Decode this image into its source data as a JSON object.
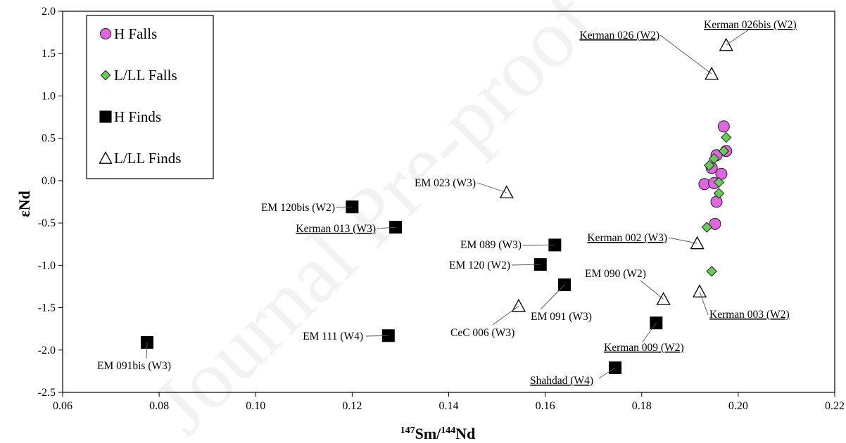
{
  "chart_data": {
    "type": "scatter",
    "watermark": "Journal Pre-proof",
    "xlabel": {
      "sup1": "147",
      "main1": "Sm/",
      "sup2": "144",
      "main2": "Nd"
    },
    "ylabel": "εNd",
    "xlim": [
      0.06,
      0.22
    ],
    "ylim": [
      -2.5,
      2.0
    ],
    "xticks": [
      0.06,
      0.08,
      0.1,
      0.12,
      0.14,
      0.16,
      0.18,
      0.2,
      0.22
    ],
    "xtick_labels": [
      "0.06",
      "0.08",
      "0.10",
      "0.12",
      "0.14",
      "0.16",
      "0.18",
      "0.20",
      "0.22"
    ],
    "yticks": [
      2.0,
      1.5,
      1.0,
      0.5,
      0.0,
      -0.5,
      -1.0,
      -1.5,
      -2.0,
      -2.5
    ],
    "ytick_labels": [
      "2.0",
      "1.5",
      "1.0",
      "0.5",
      "0.0",
      "-0.5",
      "-1.0",
      "-1.5",
      "-2.0",
      "-2.5"
    ],
    "grid": false,
    "legend_position": "top-left",
    "series": [
      {
        "name": "H Falls",
        "marker": "circle",
        "color": "#e066e0",
        "points": [
          {
            "x": 0.197,
            "y": 0.64
          },
          {
            "x": 0.1975,
            "y": 0.35
          },
          {
            "x": 0.1955,
            "y": 0.3
          },
          {
            "x": 0.1945,
            "y": 0.15
          },
          {
            "x": 0.1965,
            "y": 0.08
          },
          {
            "x": 0.193,
            "y": -0.04
          },
          {
            "x": 0.195,
            "y": -0.03
          },
          {
            "x": 0.1955,
            "y": -0.25
          },
          {
            "x": 0.1952,
            "y": -0.51
          }
        ]
      },
      {
        "name": "L/LL Falls",
        "marker": "diamond",
        "color": "#66cc55",
        "points": [
          {
            "x": 0.1975,
            "y": 0.51
          },
          {
            "x": 0.197,
            "y": 0.35
          },
          {
            "x": 0.195,
            "y": 0.26
          },
          {
            "x": 0.194,
            "y": 0.18
          },
          {
            "x": 0.196,
            "y": -0.02
          },
          {
            "x": 0.196,
            "y": -0.15
          },
          {
            "x": 0.1935,
            "y": -0.55
          },
          {
            "x": 0.1945,
            "y": -1.07
          }
        ]
      },
      {
        "name": "H Finds",
        "marker": "square",
        "color": "#000000",
        "points": [
          {
            "x": 0.12,
            "y": -0.31,
            "label": "EM 120bis (W2)",
            "underline": false
          },
          {
            "x": 0.129,
            "y": -0.55,
            "label": "Kerman 013 (W3)",
            "underline": true
          },
          {
            "x": 0.162,
            "y": -0.76,
            "label": "EM 089 (W3)",
            "underline": false
          },
          {
            "x": 0.159,
            "y": -0.99,
            "label": "EM 120 (W2)",
            "underline": false
          },
          {
            "x": 0.164,
            "y": -1.23,
            "label": "EM 091 (W3)",
            "underline": false
          },
          {
            "x": 0.183,
            "y": -1.68,
            "label": "Kerman 009 (W2)",
            "underline": true
          },
          {
            "x": 0.1275,
            "y": -1.83,
            "label": "EM 111 (W4)",
            "underline": false
          },
          {
            "x": 0.0775,
            "y": -1.91,
            "label": "EM 091bis (W3)",
            "underline": false
          },
          {
            "x": 0.1745,
            "y": -2.21,
            "label": "Shahdad (W4)",
            "underline": true
          }
        ]
      },
      {
        "name": "L/LL Finds",
        "marker": "triangle",
        "color": "#ffffff",
        "points": [
          {
            "x": 0.1975,
            "y": 1.6,
            "label": "Kerman 026bis (W2)",
            "underline": true
          },
          {
            "x": 0.1945,
            "y": 1.26,
            "label": "Kerman 026 (W2)",
            "underline": true
          },
          {
            "x": 0.152,
            "y": -0.14,
            "label": "EM 023 (W3)",
            "underline": false
          },
          {
            "x": 0.1915,
            "y": -0.74,
            "label": "Kerman 002 (W3)",
            "underline": true
          },
          {
            "x": 0.1845,
            "y": -1.4,
            "label": "EM 090 (W2)",
            "underline": false
          },
          {
            "x": 0.192,
            "y": -1.31,
            "label": "Kerman 003 (W2)",
            "underline": true
          },
          {
            "x": 0.1545,
            "y": -1.48,
            "label": "CeC 006 (W3)",
            "underline": false
          }
        ]
      }
    ]
  }
}
